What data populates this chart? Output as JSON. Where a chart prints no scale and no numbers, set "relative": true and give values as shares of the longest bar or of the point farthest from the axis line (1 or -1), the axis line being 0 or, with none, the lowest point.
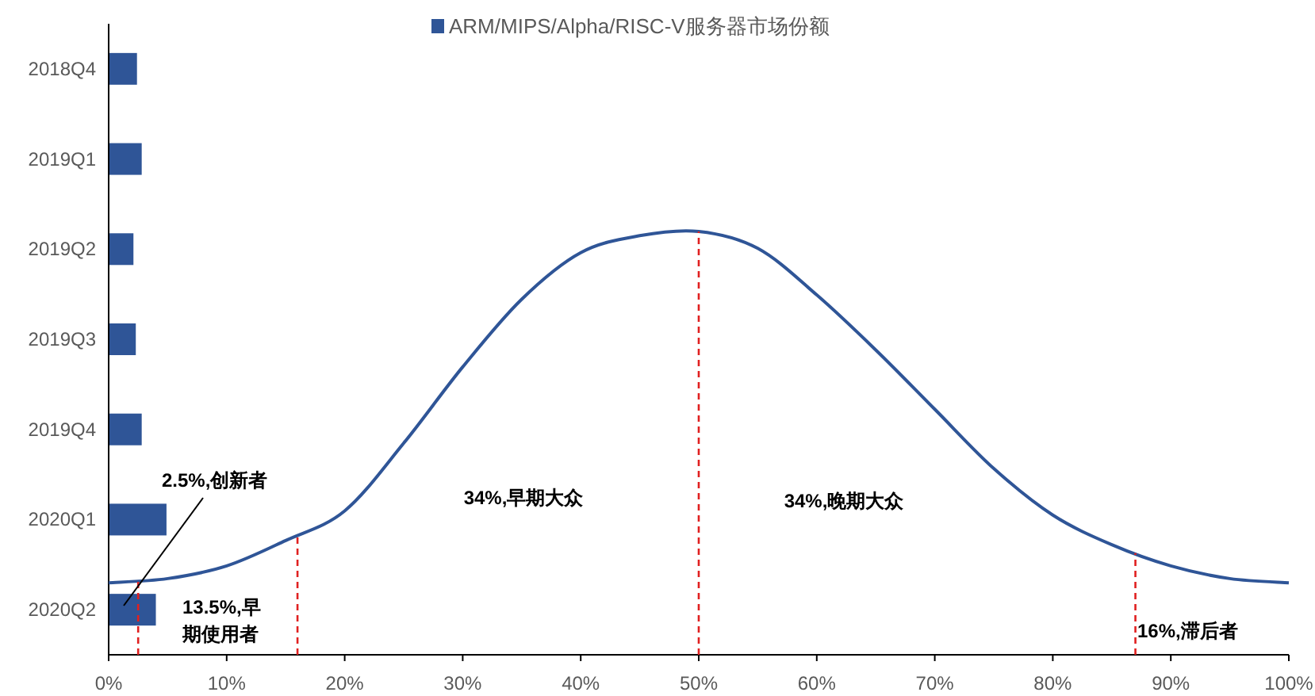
{
  "chart_data": [
    {
      "type": "bar",
      "orientation": "horizontal",
      "categories": [
        "2018Q4",
        "2019Q1",
        "2019Q2",
        "2019Q3",
        "2019Q4",
        "2020Q1",
        "2020Q2"
      ],
      "series": [
        {
          "name": "ARM/MIPS/Alpha/RISC-V服务器市场份额",
          "color": "#2f5597",
          "values": [
            2.4,
            2.8,
            2.1,
            2.3,
            2.8,
            4.9,
            4.0
          ]
        }
      ],
      "xlim": [
        0,
        100
      ],
      "xticks": [
        {
          "value": 0,
          "label": "0%"
        },
        {
          "value": 10,
          "label": "10%"
        },
        {
          "value": 20,
          "label": "20%"
        },
        {
          "value": 30,
          "label": "30%"
        },
        {
          "value": 40,
          "label": "40%"
        },
        {
          "value": 50,
          "label": "50%"
        },
        {
          "value": 60,
          "label": "60%"
        },
        {
          "value": 70,
          "label": "70%"
        },
        {
          "value": 80,
          "label": "80%"
        },
        {
          "value": 90,
          "label": "90%"
        },
        {
          "value": 100,
          "label": "100%"
        }
      ],
      "legend": "top"
    },
    {
      "type": "line",
      "relative": true,
      "xlim": [
        0,
        100
      ],
      "series": [
        {
          "color": "#2f5597",
          "x": [
            0,
            5,
            10,
            15,
            20,
            25,
            30,
            35,
            40,
            45,
            50,
            55,
            60,
            65,
            70,
            75,
            80,
            85,
            90,
            95,
            100
          ],
          "values": [
            0.17,
            0.18,
            0.21,
            0.27,
            0.34,
            0.5,
            0.68,
            0.84,
            0.95,
            0.99,
            1.0,
            0.96,
            0.85,
            0.72,
            0.58,
            0.44,
            0.33,
            0.26,
            0.21,
            0.18,
            0.17
          ]
        }
      ],
      "ref_lines": [
        {
          "axis": "x",
          "value": 2.5,
          "color": "#e02020",
          "line_style": "dashed"
        },
        {
          "axis": "x",
          "value": 16,
          "color": "#e02020",
          "line_style": "dashed"
        },
        {
          "axis": "x",
          "value": 50,
          "color": "#e02020",
          "line_style": "dashed"
        },
        {
          "axis": "x",
          "value": 87,
          "color": "#e02020",
          "line_style": "dashed"
        }
      ],
      "annotations": [
        "2.5%,创新者",
        "13.5%,早期使用者",
        "34%,早期大众",
        "34%,晚期大众",
        "16%,滞后者"
      ]
    }
  ]
}
